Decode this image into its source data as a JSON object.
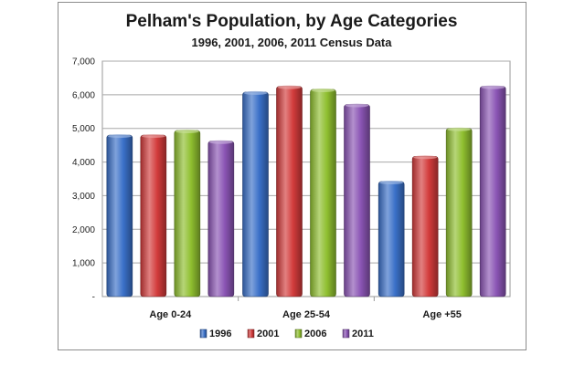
{
  "chart_data": {
    "type": "bar",
    "title": "Pelham's Population, by Age Categories",
    "subtitle": "1996, 2001, 2006, 2011 Census Data",
    "categories": [
      "Age 0-24",
      "Age 25-54",
      "Age +55"
    ],
    "series": [
      {
        "name": "1996",
        "color": "#3a70c8",
        "values": [
          4800,
          6080,
          3420
        ]
      },
      {
        "name": "2001",
        "color": "#d23b3b",
        "values": [
          4800,
          6250,
          4170
        ]
      },
      {
        "name": "2006",
        "color": "#8fbf2f",
        "values": [
          4940,
          6160,
          5000
        ]
      },
      {
        "name": "2011",
        "color": "#8a54b4",
        "values": [
          4620,
          5710,
          6250
        ]
      }
    ],
    "ylim": [
      0,
      7000
    ],
    "yticks": [
      0,
      1000,
      2000,
      3000,
      4000,
      5000,
      6000,
      7000
    ],
    "ytick_labels": [
      "-",
      "1,000",
      "2,000",
      "3,000",
      "4,000",
      "5,000",
      "6,000",
      "7,000"
    ],
    "grid": true,
    "legend_position": "bottom"
  }
}
